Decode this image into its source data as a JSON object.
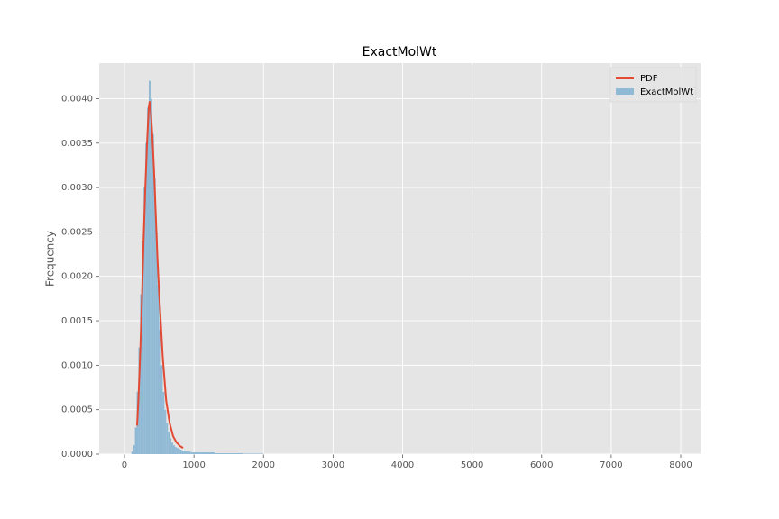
{
  "chart_data": {
    "type": "histogram",
    "title": "ExactMolWt",
    "ylabel": "Frequency",
    "xlim": [
      -363,
      8285
    ],
    "ylim": [
      0,
      0.0044
    ],
    "xticks": [
      0,
      1000,
      2000,
      3000,
      4000,
      5000,
      6000,
      7000,
      8000
    ],
    "yticks": [
      {
        "value": 0,
        "label": "0.0000"
      },
      {
        "value": 0.0005,
        "label": "0.0005"
      },
      {
        "value": 0.001,
        "label": "0.0010"
      },
      {
        "value": 0.0015,
        "label": "0.0015"
      },
      {
        "value": 0.002,
        "label": "0.0020"
      },
      {
        "value": 0.0025,
        "label": "0.0025"
      },
      {
        "value": 0.003,
        "label": "0.0030"
      },
      {
        "value": 0.0035,
        "label": "0.0035"
      },
      {
        "value": 0.004,
        "label": "0.0040"
      }
    ],
    "grid": true,
    "legend": "upper right",
    "series": [
      {
        "name": "PDF",
        "type": "line",
        "color": "#E24A33",
        "x": [
          181,
          200,
          225,
          250,
          275,
          300,
          325,
          350,
          363,
          375,
          400,
          425,
          450,
          475,
          500,
          550,
          600,
          650,
          700,
          750,
          800,
          843
        ],
        "values": [
          0.00032,
          0.0006,
          0.0011,
          0.0017,
          0.0024,
          0.003,
          0.0035,
          0.0039,
          0.00397,
          0.0039,
          0.0036,
          0.0032,
          0.0027,
          0.0022,
          0.0018,
          0.0011,
          0.0006,
          0.00035,
          0.0002,
          0.00013,
          9e-05,
          7e-05
        ]
      },
      {
        "name": "ExactMolWt",
        "type": "histogram",
        "color": "#8fb9d5",
        "bins": [
          100,
          125,
          150,
          175,
          200,
          225,
          250,
          275,
          300,
          325,
          350,
          375,
          400,
          425,
          450,
          475,
          500,
          525,
          550,
          575,
          600,
          625,
          650,
          675,
          700,
          725,
          750,
          775,
          800,
          825,
          850,
          875,
          900,
          925,
          950,
          975,
          1000,
          1100,
          1200,
          1300,
          1400,
          1500,
          1600,
          1700,
          1800,
          1900,
          2000
        ],
        "values": [
          3e-05,
          0.0001,
          0.0003,
          0.0007,
          0.0012,
          0.0018,
          0.0024,
          0.003,
          0.0035,
          0.0039,
          0.0042,
          0.004,
          0.0036,
          0.0031,
          0.0025,
          0.0019,
          0.0014,
          0.001,
          0.0007,
          0.0005,
          0.00035,
          0.00025,
          0.00018,
          0.00013,
          0.0001,
          8e-05,
          7e-05,
          6e-05,
          5e-05,
          4e-05,
          4e-05,
          3e-05,
          3e-05,
          3e-05,
          2e-05,
          2e-05,
          2e-05,
          2e-05,
          2e-05,
          1e-05,
          1e-05,
          1e-05,
          1e-05,
          5e-06,
          5e-06,
          5e-06
        ]
      }
    ]
  }
}
